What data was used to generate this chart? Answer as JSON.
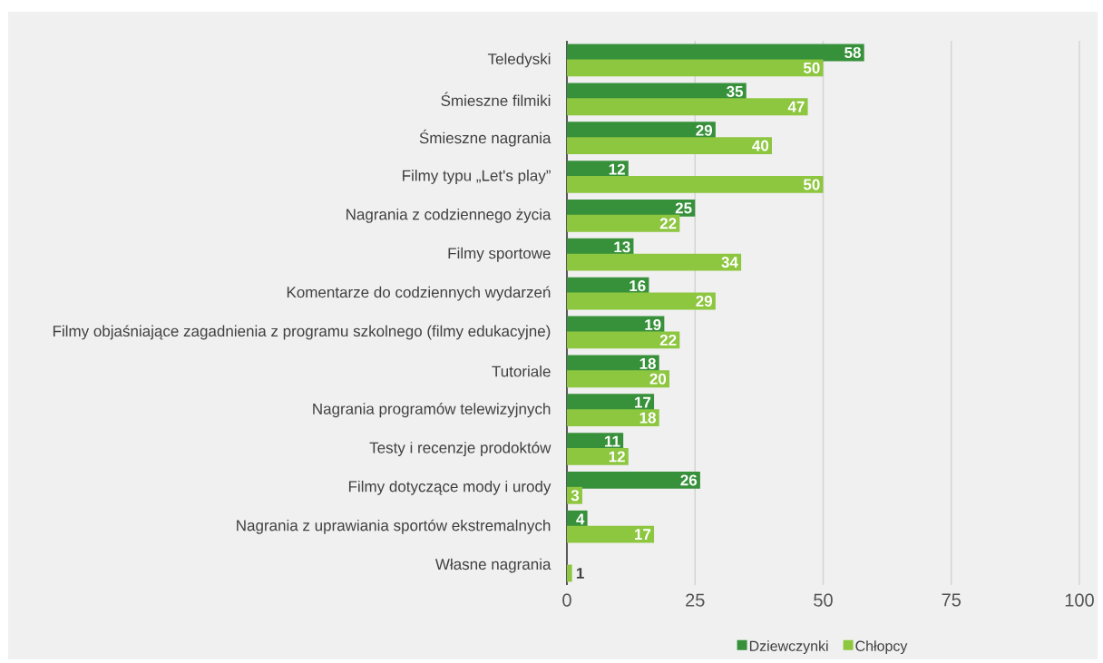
{
  "chart_data": {
    "type": "bar",
    "orientation": "horizontal",
    "categories": [
      "Teledyski",
      "Śmieszne filmiki",
      "Śmieszne nagrania",
      "Filmy typu „Let's play”",
      "Nagrania z codziennego życia",
      "Filmy sportowe",
      "Komentarze do codziennych wydarzeń",
      "Filmy objaśniające zagadnienia z programu szkolnego (filmy edukacyjne)",
      "Tutoriale",
      "Nagrania programów telewizyjnych",
      "Testy i recenzje prodoktów",
      "Filmy dotyczące mody i urody",
      "Nagrania z uprawiania sportów ekstremalnych",
      "Własne nagrania"
    ],
    "series": [
      {
        "name": "Dziewczynki",
        "color": "#37913a",
        "values": [
          58,
          35,
          29,
          12,
          25,
          13,
          16,
          19,
          18,
          17,
          11,
          26,
          4,
          null
        ]
      },
      {
        "name": "Chłopcy",
        "color": "#8dc63f",
        "values": [
          50,
          47,
          40,
          50,
          22,
          34,
          29,
          22,
          20,
          18,
          12,
          3,
          17,
          1
        ]
      }
    ],
    "xlim": [
      0,
      100
    ],
    "xticks": [
      0,
      25,
      50,
      75,
      100
    ],
    "grid": "x",
    "legend": "bottom",
    "data_labels": true
  }
}
